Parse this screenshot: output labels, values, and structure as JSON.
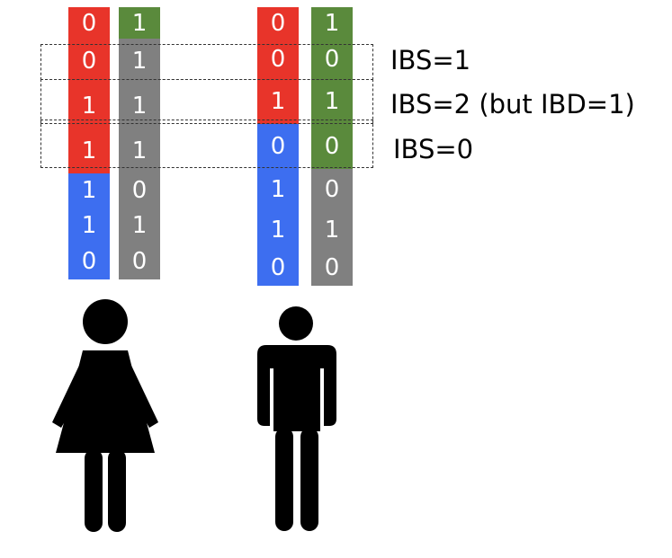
{
  "labels": {
    "ibs1": "IBS=1",
    "ibs2": "IBS=2 (but IBD=1)",
    "ibs0": "IBS=0"
  },
  "colors": {
    "red": "#e8342a",
    "green": "#5a8a3c",
    "gray": "#808080",
    "blue": "#3d6ef0",
    "figure": "#000000"
  },
  "individuals": [
    {
      "name": "woman",
      "chromosomes": [
        {
          "alleles": [
            "0",
            "0",
            "1",
            "1",
            "1",
            "1",
            "0"
          ],
          "segments": [
            {
              "color": "red",
              "count": 4
            },
            {
              "color": "blue",
              "count": 3
            }
          ]
        },
        {
          "alleles": [
            "1",
            "1",
            "1",
            "1",
            "0",
            "1",
            "0"
          ],
          "segments": [
            {
              "color": "green",
              "count": 1
            },
            {
              "color": "gray",
              "count": 6
            }
          ]
        }
      ]
    },
    {
      "name": "man",
      "chromosomes": [
        {
          "alleles": [
            "0",
            "0",
            "1",
            "0",
            "1",
            "1",
            "0"
          ],
          "segments": [
            {
              "color": "red",
              "count": 3
            },
            {
              "color": "blue",
              "count": 4
            }
          ]
        },
        {
          "alleles": [
            "1",
            "0",
            "1",
            "0",
            "0",
            "1",
            "0"
          ],
          "segments": [
            {
              "color": "green",
              "count": 4
            },
            {
              "color": "gray",
              "count": 3
            }
          ]
        }
      ]
    }
  ]
}
